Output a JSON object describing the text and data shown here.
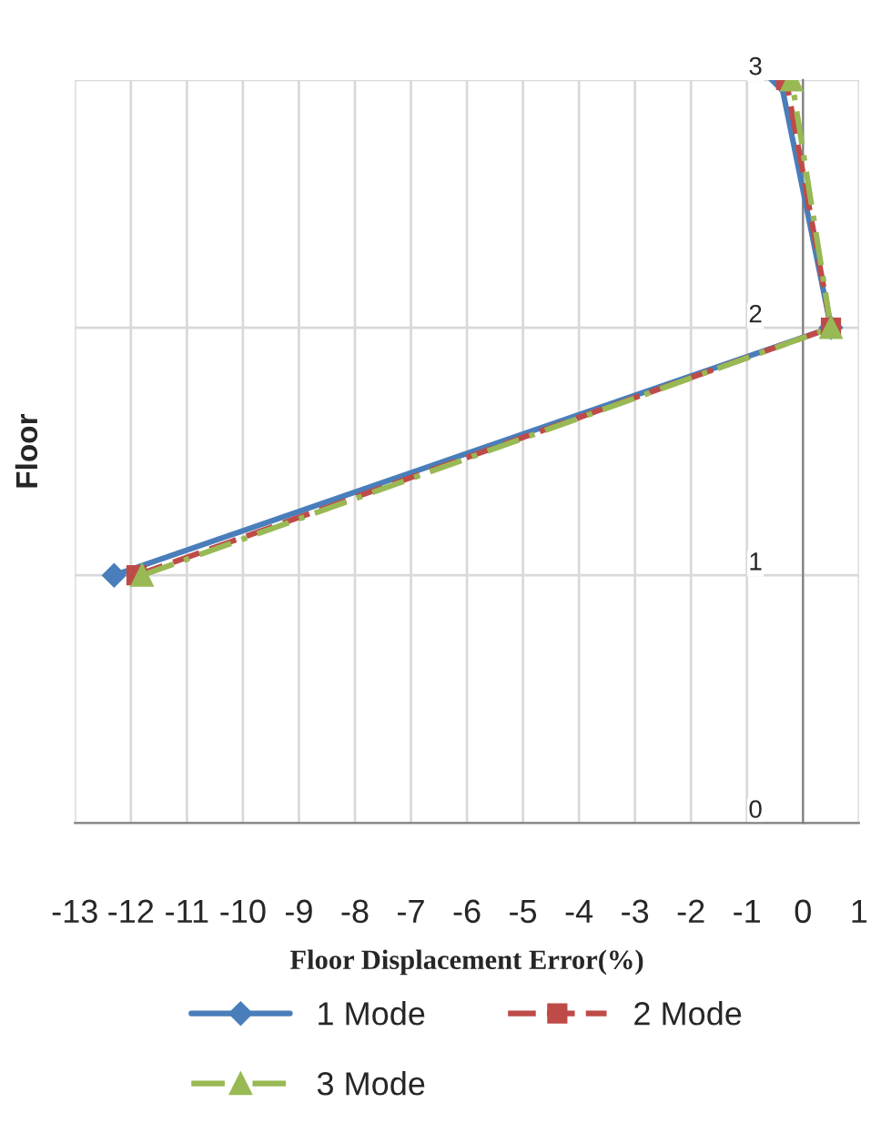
{
  "chart_data": {
    "type": "line",
    "xlabel": "Floor Displacement Error(%)",
    "ylabel": "Floor",
    "series": [
      {
        "name": "1 Mode",
        "color": "#4a7ebb",
        "marker": "diamond",
        "line_style": "solid",
        "x": [
          -12.3,
          0.5,
          -0.4
        ],
        "values": [
          1,
          2,
          3
        ]
      },
      {
        "name": "2 Mode",
        "color": "#be4b48",
        "marker": "square",
        "line_style": "dashed",
        "x": [
          -11.9,
          0.5,
          -0.3
        ],
        "values": [
          1,
          2,
          3
        ]
      },
      {
        "name": "3 Mode",
        "color": "#98b954",
        "marker": "triangle",
        "line_style": "dashdot",
        "x": [
          -11.8,
          0.5,
          -0.2
        ],
        "values": [
          1,
          2,
          3
        ]
      }
    ],
    "xlim": [
      -13,
      1
    ],
    "xticks": [
      -13,
      -12,
      -11,
      -10,
      -9,
      -8,
      -7,
      -6,
      -5,
      -4,
      -3,
      -2,
      -1,
      0,
      1
    ],
    "ylim": [
      0,
      3
    ],
    "yticks": [
      0,
      1,
      2,
      3
    ],
    "grid": true,
    "legend": "bottom"
  }
}
